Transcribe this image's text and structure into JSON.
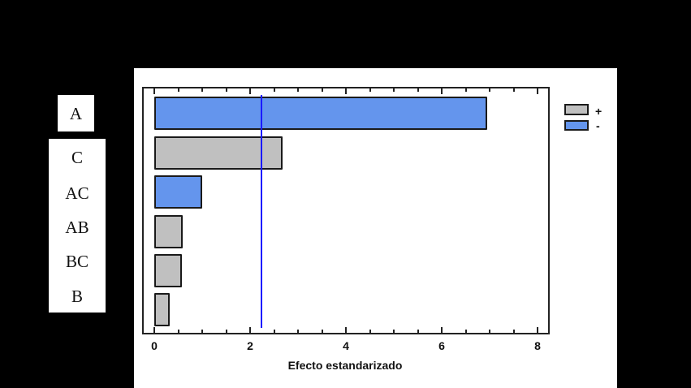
{
  "chart_data": {
    "type": "bar",
    "orientation": "horizontal",
    "title": "",
    "xlabel": "Efecto estandarizado",
    "ylabel": "",
    "categories": [
      "A",
      "C",
      "AC",
      "AB",
      "BC",
      "B"
    ],
    "values": [
      6.95,
      2.68,
      1.0,
      0.6,
      0.57,
      0.33
    ],
    "signs": [
      "-",
      "+",
      "-",
      "+",
      "+",
      "+"
    ],
    "xlim": [
      0,
      8
    ],
    "xticks": [
      "0",
      "2",
      "4",
      "6",
      "8"
    ],
    "reference_line": 2.24,
    "grid": false,
    "legend": [
      {
        "label": "+",
        "color": "#C0C0C0"
      },
      {
        "label": "-",
        "color": "#6495ED"
      }
    ],
    "legend_position": "right-top"
  },
  "colors": {
    "positive": "#C0C0C0",
    "negative": "#6495ED",
    "reference_line": "#1A1AFF"
  },
  "labels": {
    "row_labels": [
      "A",
      "C",
      "AC",
      "AB",
      "BC",
      "B"
    ]
  }
}
